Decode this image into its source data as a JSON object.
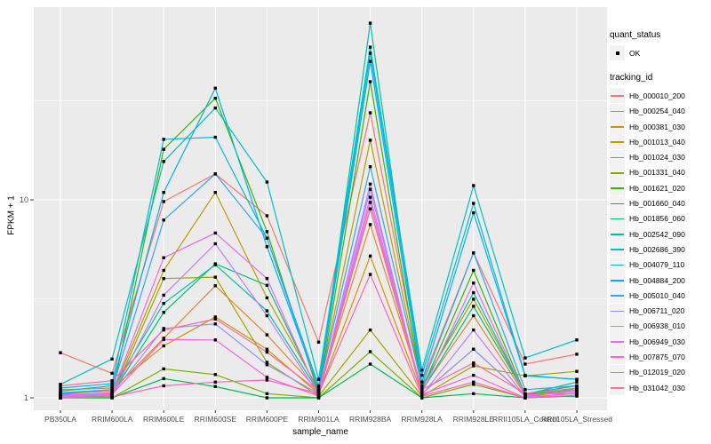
{
  "figure": {
    "background": "#FFFFFF",
    "panel_bg": "#EBEBEB",
    "grid_major": "#FFFFFF",
    "tick_color": "#333333",
    "tick_label_color": "#4D4D4D",
    "point_color": "#000000"
  },
  "legend": {
    "quant_title": "quant_status",
    "quant_items": [
      {
        "label": "OK",
        "marker": "point"
      }
    ],
    "tracking_title": "tracking_id"
  },
  "chart_data": {
    "type": "line",
    "xlabel": "sample_name",
    "ylabel": "FPKM + 1",
    "y_scale": "log10",
    "ylim": [
      1,
      93
    ],
    "y_ticks": [
      1,
      10
    ],
    "y_tick_labels": [
      "1",
      "10"
    ],
    "y_minor": [
      3.1623,
      31.623
    ],
    "grid": true,
    "legend_position": "right",
    "x_categories": [
      "PB350LA",
      "RRIM600LA",
      "RRIM600LE",
      "RRIM600SE",
      "RRIM600PE",
      "RRIM901LA",
      "RRIM928BA",
      "RRIM928LA",
      "RRIM928LE",
      "RRII105LA_Control",
      "RRII105LA_Stressed"
    ],
    "series": [
      {
        "name": "Hb_000010_200",
        "color": "#F8766D",
        "values": [
          1.69,
          1.33,
          9.8,
          13.5,
          8.3,
          1.91,
          27.5,
          1.2,
          5.4,
          1.48,
          1.66
        ]
      },
      {
        "name": "Hb_000254_040",
        "color": "#EA8331",
        "values": [
          1.05,
          1.08,
          2.0,
          3.68,
          2.08,
          1.08,
          7.5,
          1.1,
          2.6,
          1.03,
          1.1
        ]
      },
      {
        "name": "Hb_000381_030",
        "color": "#D89000",
        "values": [
          1.1,
          1.12,
          1.83,
          2.56,
          1.76,
          1.05,
          5.2,
          1.05,
          1.76,
          1.02,
          1.08
        ]
      },
      {
        "name": "Hb_001013_040",
        "color": "#C09B00",
        "values": [
          1.02,
          1.05,
          4.4,
          10.9,
          3.2,
          1.1,
          20.0,
          1.15,
          3.15,
          1.05,
          1.05
        ]
      },
      {
        "name": "Hb_001024_030",
        "color": "#A3A500",
        "values": [
          1.0,
          1.02,
          4.0,
          4.07,
          1.51,
          1.02,
          2.2,
          1.02,
          1.45,
          1.29,
          1.36
        ]
      },
      {
        "name": "Hb_001331_040",
        "color": "#7CAE00",
        "values": [
          1.0,
          1.0,
          1.4,
          1.31,
          1.05,
          1.0,
          1.71,
          1.0,
          1.17,
          1.0,
          1.12
        ]
      },
      {
        "name": "Hb_001621_020",
        "color": "#39B600",
        "values": [
          1.0,
          1.03,
          18.0,
          32.6,
          6.9,
          1.05,
          39.5,
          1.1,
          4.4,
          1.04,
          1.1
        ]
      },
      {
        "name": "Hb_001660_040",
        "color": "#00BB4E",
        "values": [
          1.0,
          1.0,
          1.25,
          1.14,
          1.0,
          1.0,
          1.48,
          1.0,
          1.05,
          1.0,
          1.02
        ]
      },
      {
        "name": "Hb_001856_060",
        "color": "#00BF7D",
        "values": [
          1.04,
          1.05,
          2.7,
          4.75,
          3.7,
          1.06,
          9.0,
          1.08,
          2.9,
          1.05,
          1.15
        ]
      },
      {
        "name": "Hb_002542_090",
        "color": "#00C1A3",
        "values": [
          1.06,
          1.1,
          3.0,
          4.7,
          2.75,
          1.07,
          78.0,
          1.12,
          3.4,
          1.04,
          1.2
        ]
      },
      {
        "name": "Hb_002686_390",
        "color": "#00BFC4",
        "values": [
          1.17,
          1.57,
          15.6,
          29.1,
          12.3,
          1.24,
          59.0,
          1.38,
          11.8,
          1.59,
          1.96
        ]
      },
      {
        "name": "Hb_004079_110",
        "color": "#00BADE",
        "values": [
          1.12,
          1.18,
          20.2,
          20.7,
          6.4,
          1.15,
          55.0,
          1.3,
          9.6,
          1.3,
          1.24
        ]
      },
      {
        "name": "Hb_004884_200",
        "color": "#00B0F6",
        "values": [
          1.08,
          1.15,
          10.9,
          36.6,
          5.8,
          1.12,
          50.0,
          1.2,
          8.6,
          1.29,
          1.24
        ]
      },
      {
        "name": "Hb_005010_040",
        "color": "#35A2FF",
        "values": [
          1.05,
          1.1,
          7.9,
          13.5,
          6.4,
          1.1,
          14.7,
          1.15,
          5.4,
          1.1,
          1.15
        ]
      },
      {
        "name": "Hb_006711_020",
        "color": "#9590FF",
        "values": [
          1.02,
          1.05,
          2.24,
          2.36,
          1.47,
          1.05,
          11.3,
          1.05,
          1.76,
          1.02,
          1.1
        ]
      },
      {
        "name": "Hb_006938_010",
        "color": "#C77CFF",
        "values": [
          1.01,
          1.03,
          3.3,
          6.0,
          2.6,
          1.03,
          12.0,
          1.03,
          2.2,
          1.01,
          1.05
        ]
      },
      {
        "name": "Hb_006949_030",
        "color": "#E76BF3",
        "values": [
          1.03,
          1.06,
          5.1,
          6.8,
          4.0,
          1.04,
          10.3,
          1.06,
          3.8,
          1.03,
          1.08
        ]
      },
      {
        "name": "Hb_007875_070",
        "color": "#FA62DB",
        "values": [
          1.0,
          1.04,
          1.97,
          1.96,
          1.27,
          1.02,
          9.7,
          1.04,
          1.3,
          1.0,
          1.06
        ]
      },
      {
        "name": "Hb_012019_020",
        "color": "#FF62BC",
        "values": [
          1.0,
          1.01,
          1.15,
          1.2,
          1.23,
          1.05,
          4.2,
          1.02,
          1.2,
          1.0,
          1.03
        ]
      },
      {
        "name": "Hb_031042_030",
        "color": "#FF6A98",
        "values": [
          1.15,
          1.22,
          2.2,
          2.5,
          1.7,
          1.08,
          9.0,
          1.1,
          1.5,
          1.05,
          1.12
        ]
      }
    ]
  }
}
